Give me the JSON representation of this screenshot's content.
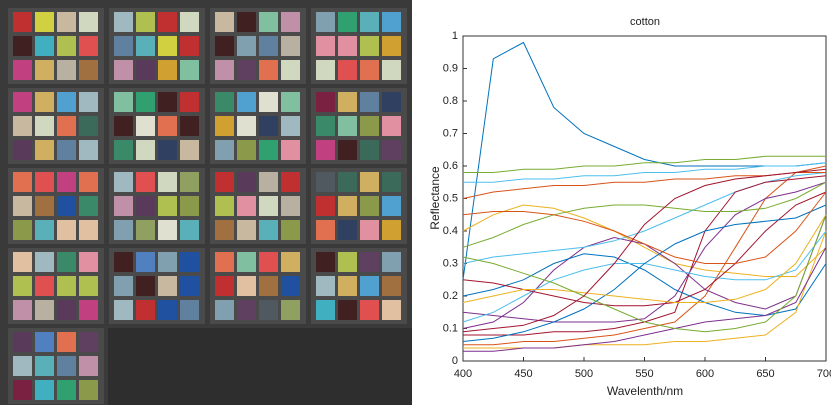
{
  "chart_data": {
    "type": "line",
    "title": "cotton",
    "x_label": "Wavelenth/nm",
    "y_label": "Reflectance",
    "x": [
      400,
      425,
      450,
      475,
      500,
      525,
      550,
      575,
      600,
      625,
      650,
      675,
      700
    ],
    "xlim": [
      400,
      700
    ],
    "ylim": [
      0,
      1
    ],
    "xticks": [
      400,
      450,
      500,
      550,
      600,
      650,
      700
    ],
    "yticks": [
      0,
      0.1,
      0.2,
      0.3,
      0.4,
      0.5,
      0.6,
      0.7,
      0.8,
      0.9,
      1
    ],
    "series": [
      {
        "color": "#0072BD",
        "values": [
          0.25,
          0.93,
          0.98,
          0.78,
          0.7,
          0.66,
          0.62,
          0.6,
          0.6,
          0.6,
          0.6,
          0.6,
          0.61
        ]
      },
      {
        "color": "#77AC30",
        "values": [
          0.58,
          0.58,
          0.59,
          0.59,
          0.6,
          0.6,
          0.61,
          0.61,
          0.62,
          0.62,
          0.63,
          0.63,
          0.63
        ]
      },
      {
        "color": "#D95319",
        "values": [
          0.05,
          0.05,
          0.06,
          0.06,
          0.07,
          0.08,
          0.1,
          0.12,
          0.2,
          0.35,
          0.5,
          0.58,
          0.6
        ]
      },
      {
        "color": "#EDB120",
        "values": [
          0.4,
          0.45,
          0.48,
          0.47,
          0.44,
          0.4,
          0.35,
          0.3,
          0.28,
          0.27,
          0.26,
          0.26,
          0.35
        ]
      },
      {
        "color": "#7E2F8E",
        "values": [
          0.1,
          0.12,
          0.18,
          0.28,
          0.35,
          0.38,
          0.36,
          0.3,
          0.22,
          0.18,
          0.16,
          0.2,
          0.45
        ]
      },
      {
        "color": "#4DBEEE",
        "values": [
          0.3,
          0.32,
          0.33,
          0.34,
          0.35,
          0.37,
          0.4,
          0.44,
          0.48,
          0.52,
          0.55,
          0.57,
          0.58
        ]
      },
      {
        "color": "#A2142F",
        "values": [
          0.08,
          0.08,
          0.08,
          0.09,
          0.09,
          0.1,
          0.12,
          0.15,
          0.4,
          0.52,
          0.55,
          0.56,
          0.57
        ]
      },
      {
        "color": "#0072BD",
        "values": [
          0.2,
          0.22,
          0.25,
          0.3,
          0.33,
          0.32,
          0.28,
          0.22,
          0.18,
          0.15,
          0.14,
          0.16,
          0.3
        ]
      },
      {
        "color": "#D95319",
        "values": [
          0.5,
          0.52,
          0.53,
          0.54,
          0.54,
          0.55,
          0.55,
          0.56,
          0.56,
          0.57,
          0.57,
          0.58,
          0.58
        ]
      },
      {
        "color": "#EDB120",
        "values": [
          0.04,
          0.04,
          0.04,
          0.04,
          0.05,
          0.05,
          0.05,
          0.06,
          0.06,
          0.07,
          0.08,
          0.15,
          0.4
        ]
      },
      {
        "color": "#7E2F8E",
        "values": [
          0.15,
          0.14,
          0.13,
          0.12,
          0.12,
          0.12,
          0.13,
          0.2,
          0.35,
          0.45,
          0.5,
          0.52,
          0.55
        ]
      },
      {
        "color": "#77AC30",
        "values": [
          0.35,
          0.38,
          0.42,
          0.45,
          0.47,
          0.48,
          0.48,
          0.47,
          0.46,
          0.46,
          0.47,
          0.5,
          0.55
        ]
      },
      {
        "color": "#4DBEEE",
        "values": [
          0.12,
          0.15,
          0.2,
          0.25,
          0.28,
          0.3,
          0.3,
          0.28,
          0.26,
          0.25,
          0.25,
          0.28,
          0.4
        ]
      },
      {
        "color": "#A2142F",
        "values": [
          0.25,
          0.24,
          0.22,
          0.2,
          0.18,
          0.17,
          0.17,
          0.18,
          0.22,
          0.3,
          0.4,
          0.48,
          0.52
        ]
      },
      {
        "color": "#0072BD",
        "values": [
          0.06,
          0.07,
          0.09,
          0.12,
          0.16,
          0.22,
          0.3,
          0.36,
          0.4,
          0.42,
          0.43,
          0.44,
          0.48
        ]
      },
      {
        "color": "#D95319",
        "values": [
          0.45,
          0.46,
          0.46,
          0.45,
          0.43,
          0.4,
          0.36,
          0.32,
          0.3,
          0.3,
          0.32,
          0.4,
          0.52
        ]
      },
      {
        "color": "#EDB120",
        "values": [
          0.18,
          0.2,
          0.22,
          0.22,
          0.21,
          0.2,
          0.19,
          0.18,
          0.18,
          0.19,
          0.22,
          0.3,
          0.45
        ]
      },
      {
        "color": "#7E2F8E",
        "values": [
          0.03,
          0.03,
          0.04,
          0.04,
          0.05,
          0.06,
          0.08,
          0.1,
          0.12,
          0.13,
          0.14,
          0.18,
          0.35
        ]
      },
      {
        "color": "#77AC30",
        "values": [
          0.32,
          0.3,
          0.27,
          0.24,
          0.2,
          0.16,
          0.12,
          0.1,
          0.09,
          0.1,
          0.12,
          0.2,
          0.45
        ]
      },
      {
        "color": "#4DBEEE",
        "values": [
          0.55,
          0.55,
          0.56,
          0.56,
          0.57,
          0.57,
          0.58,
          0.58,
          0.59,
          0.59,
          0.6,
          0.6,
          0.61
        ]
      },
      {
        "color": "#A2142F",
        "values": [
          0.09,
          0.1,
          0.11,
          0.14,
          0.2,
          0.3,
          0.42,
          0.5,
          0.54,
          0.56,
          0.57,
          0.58,
          0.59
        ]
      }
    ]
  }
}
